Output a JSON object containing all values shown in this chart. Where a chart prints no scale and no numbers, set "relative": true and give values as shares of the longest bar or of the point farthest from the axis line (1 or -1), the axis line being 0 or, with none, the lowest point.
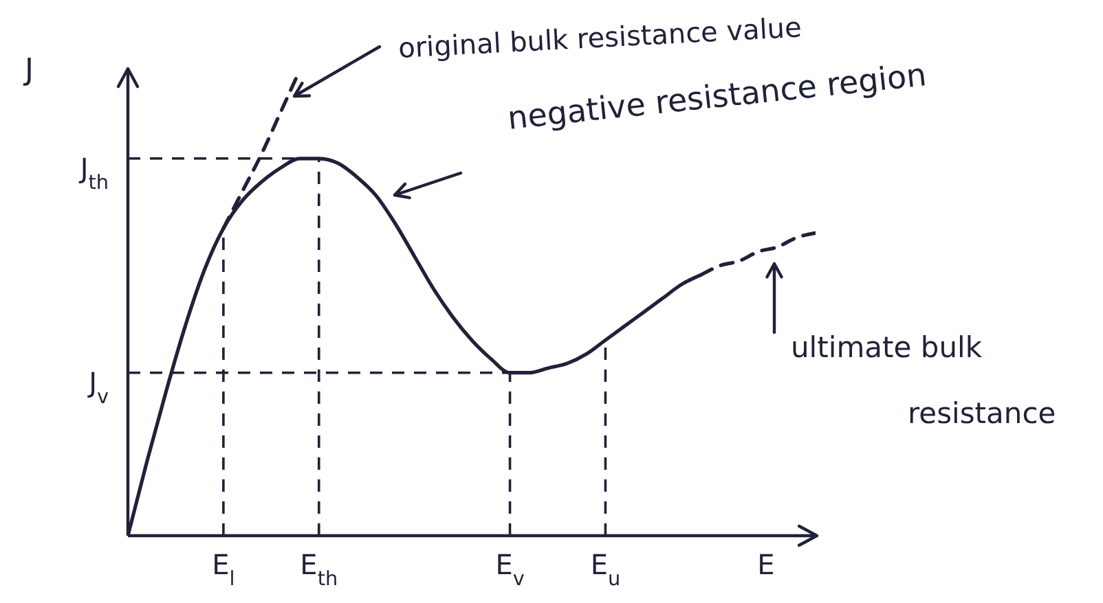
{
  "chart_data": {
    "type": "line",
    "xlabel": "E",
    "ylabel": "J",
    "relative": true,
    "marker": "none",
    "categories": [
      null,
      null,
      null,
      null,
      null,
      "E$_{l}$",
      null,
      null,
      null,
      null,
      "E$_{th}$",
      null,
      null,
      null,
      null,
      null,
      null,
      null,
      null,
      null,
      "E$_{v}$",
      null,
      null,
      null,
      null,
      "E$_{u}$",
      null,
      null,
      null,
      null,
      null,
      null,
      null,
      null,
      null,
      null,
      null
    ],
    "series": [
      {
        "color": "#1f2238",
        "line_style": "solid",
        "values": [
          0,
          0.16,
          0.31,
          0.45,
          0.57,
          0.66,
          0.72,
          0.76,
          0.79,
          0.81,
          0.81,
          0.8,
          0.77,
          0.73,
          0.67,
          0.6,
          0.53,
          0.47,
          0.42,
          0.38,
          0.35,
          0.35,
          0.36,
          0.37,
          0.39,
          0.42,
          0.45,
          0.48,
          0.51,
          0.54,
          0.56,
          null,
          null,
          null,
          null,
          null,
          null
        ]
      },
      {
        "color": "#1f2238",
        "line_style": "dashed",
        "values": [
          null,
          null,
          null,
          null,
          null,
          0.66,
          0.74,
          0.82,
          0.91,
          1.0,
          null,
          null,
          null,
          null,
          null,
          null,
          null,
          null,
          null,
          null,
          null,
          null,
          null,
          null,
          null,
          null,
          null,
          null,
          null,
          null,
          null,
          null,
          null,
          null,
          null,
          null,
          null
        ]
      },
      {
        "color": "#1f2238",
        "line_style": "dashed",
        "values": [
          null,
          null,
          null,
          null,
          null,
          null,
          null,
          null,
          null,
          null,
          null,
          null,
          null,
          null,
          null,
          null,
          null,
          null,
          null,
          null,
          null,
          null,
          null,
          null,
          null,
          null,
          null,
          null,
          null,
          null,
          0.56,
          0.58,
          0.59,
          0.61,
          0.62,
          0.64,
          0.65
        ]
      }
    ],
    "ref_lines": [
      {
        "axis": "y",
        "value": 0.81,
        "label": "J$_{th}$",
        "line_style": "dashed"
      },
      {
        "axis": "y",
        "value": 0.35,
        "label": "J$_{v}$",
        "line_style": "dashed"
      },
      {
        "axis": "x",
        "value": "E$_{l}$",
        "line_style": "dashed"
      },
      {
        "axis": "x",
        "value": "E$_{th}$",
        "line_style": "dashed"
      },
      {
        "axis": "x",
        "value": "E$_{v}$",
        "line_style": "dashed"
      },
      {
        "axis": "x",
        "value": "E$_{u}$",
        "line_style": "dashed"
      }
    ],
    "annotations": [
      "original bulk resistance value",
      "negative resistance region",
      "ultimate bulk resistance"
    ]
  }
}
